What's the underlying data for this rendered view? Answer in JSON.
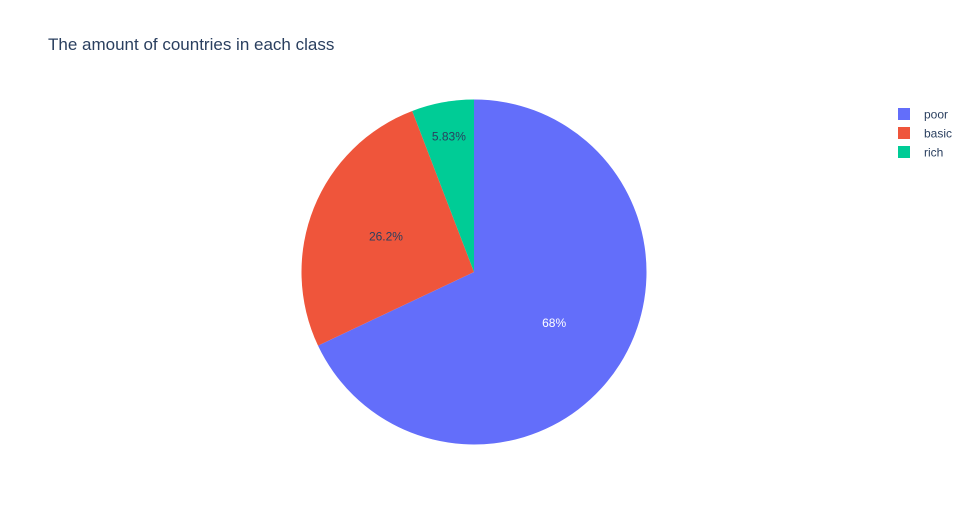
{
  "chart_data": {
    "type": "pie",
    "title": "The amount of countries in each class",
    "labels": [
      "poor",
      "basic",
      "rich"
    ],
    "values": [
      68,
      26.2,
      5.83
    ],
    "percent_labels": [
      "68%",
      "26.2%",
      "5.83%"
    ],
    "colors": [
      "#636efa",
      "#ef553b",
      "#00cc96"
    ],
    "label_colors": [
      "#ffffff",
      "#2a3f5f",
      "#2a3f5f"
    ],
    "direction": "clockwise",
    "start_position": "top",
    "legend_position": "top-right"
  }
}
